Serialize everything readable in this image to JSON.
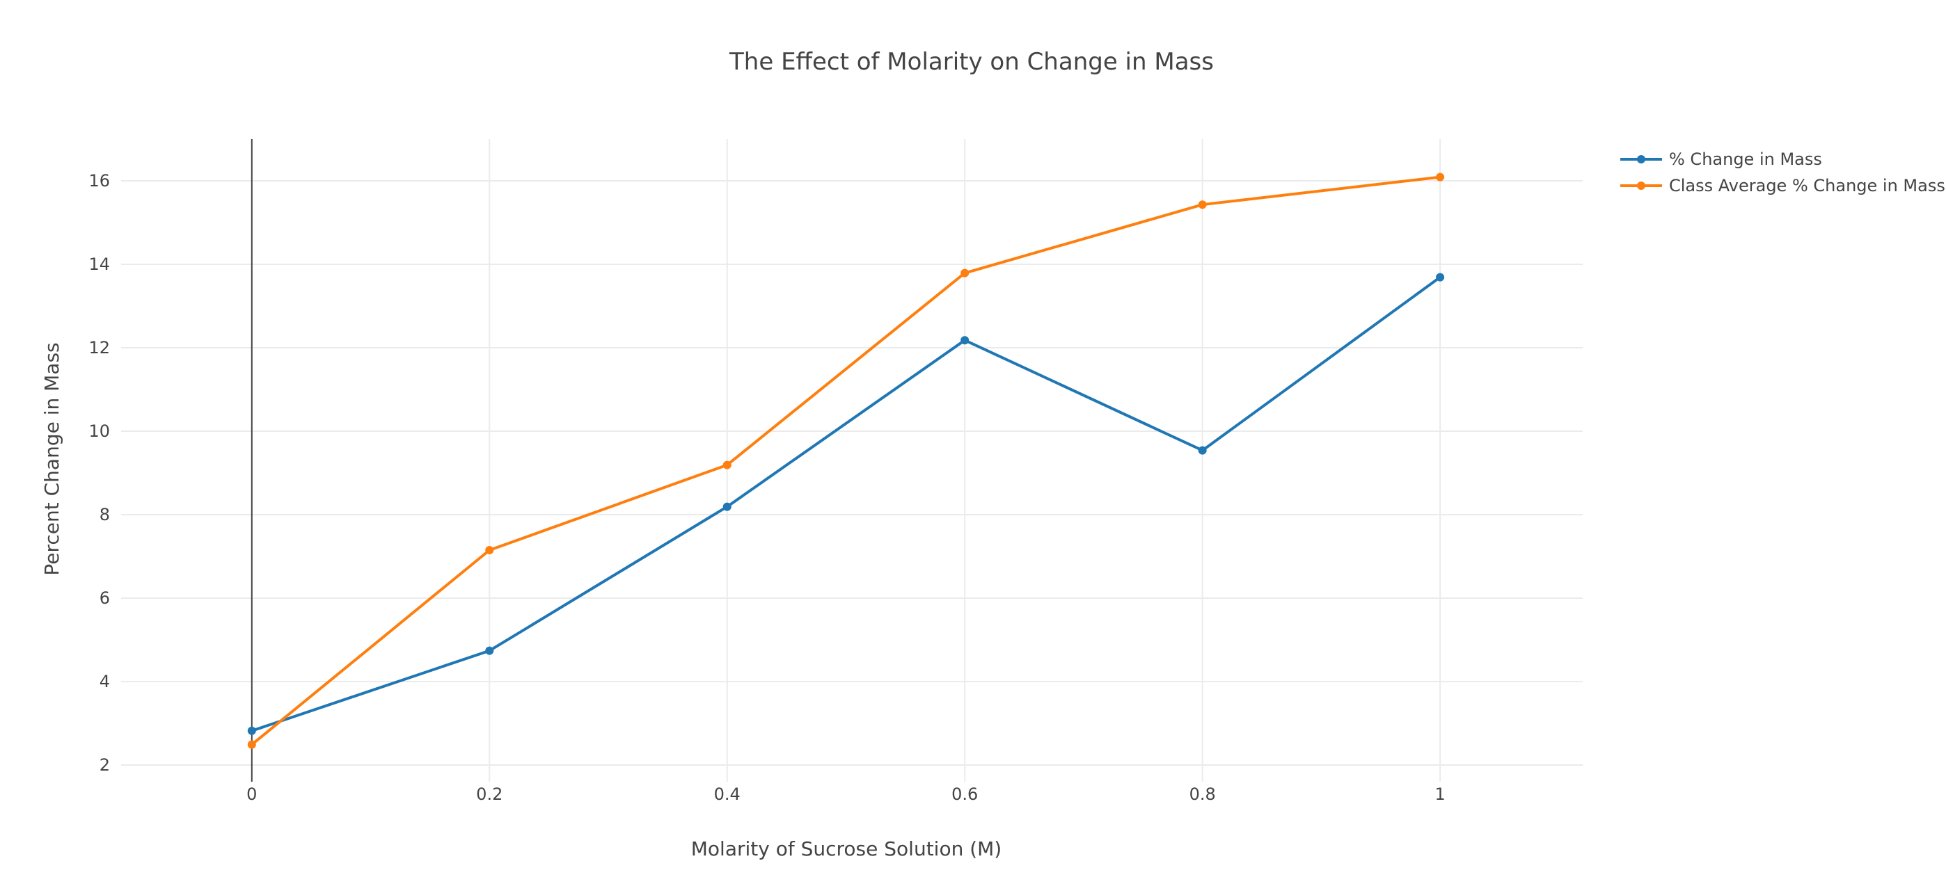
{
  "chart_data": {
    "type": "line",
    "title": "The Effect of Molarity on Change in Mass",
    "xlabel": "Molarity of Sucrose Solution (M)",
    "ylabel": "Percent Change in Mass",
    "x": [
      0,
      0.2,
      0.4,
      0.6,
      0.8,
      1
    ],
    "x_tick_labels": [
      "0",
      "0.2",
      "0.4",
      "0.6",
      "0.8",
      "1"
    ],
    "y_ticks": [
      2,
      4,
      6,
      8,
      10,
      12,
      14,
      16
    ],
    "y_tick_labels": [
      "2",
      "4",
      "6",
      "8",
      "10",
      "12",
      "14",
      "16"
    ],
    "xlim": [
      -0.11,
      1.12
    ],
    "ylim": [
      1.6,
      17
    ],
    "grid": true,
    "legend_position": "top-right, outside plot",
    "series": [
      {
        "name": "% Change in Mass",
        "color": "#1f77b4",
        "values": [
          2.82,
          4.74,
          8.19,
          12.18,
          9.54,
          13.69
        ]
      },
      {
        "name": "Class Average % Change in Mass",
        "color": "#ff7f0e",
        "values": [
          2.49,
          7.15,
          9.19,
          13.79,
          15.43,
          16.09
        ]
      }
    ]
  }
}
